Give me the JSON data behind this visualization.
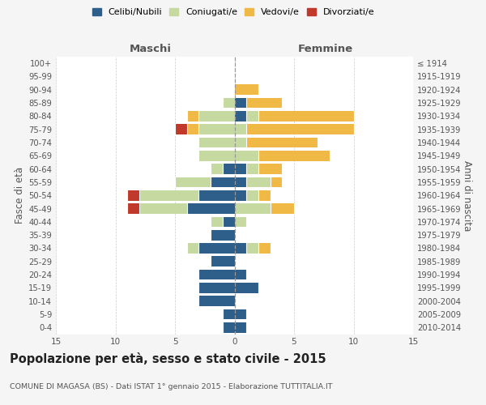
{
  "age_groups": [
    "0-4",
    "5-9",
    "10-14",
    "15-19",
    "20-24",
    "25-29",
    "30-34",
    "35-39",
    "40-44",
    "45-49",
    "50-54",
    "55-59",
    "60-64",
    "65-69",
    "70-74",
    "75-79",
    "80-84",
    "85-89",
    "90-94",
    "95-99",
    "100+"
  ],
  "birth_years": [
    "2010-2014",
    "2005-2009",
    "2000-2004",
    "1995-1999",
    "1990-1994",
    "1985-1989",
    "1980-1984",
    "1975-1979",
    "1970-1974",
    "1965-1969",
    "1960-1964",
    "1955-1959",
    "1950-1954",
    "1945-1949",
    "1940-1944",
    "1935-1939",
    "1930-1934",
    "1925-1929",
    "1920-1924",
    "1915-1919",
    "≤ 1914"
  ],
  "male": {
    "celibi": [
      1,
      1,
      3,
      3,
      3,
      2,
      3,
      2,
      1,
      4,
      3,
      2,
      1,
      0,
      0,
      0,
      0,
      0,
      0,
      0,
      0
    ],
    "coniugati": [
      0,
      0,
      0,
      0,
      0,
      0,
      1,
      0,
      1,
      4,
      5,
      3,
      1,
      3,
      3,
      3,
      3,
      1,
      0,
      0,
      0
    ],
    "vedovi": [
      0,
      0,
      0,
      0,
      0,
      0,
      0,
      0,
      0,
      0,
      0,
      0,
      0,
      0,
      0,
      1,
      1,
      0,
      0,
      0,
      0
    ],
    "divorziati": [
      0,
      0,
      0,
      0,
      0,
      0,
      0,
      0,
      0,
      1,
      1,
      0,
      0,
      0,
      0,
      1,
      0,
      0,
      0,
      0,
      0
    ]
  },
  "female": {
    "celibi": [
      1,
      1,
      0,
      2,
      1,
      0,
      1,
      0,
      0,
      0,
      1,
      1,
      1,
      0,
      0,
      0,
      1,
      1,
      0,
      0,
      0
    ],
    "coniugati": [
      0,
      0,
      0,
      0,
      0,
      0,
      1,
      0,
      1,
      3,
      1,
      2,
      1,
      2,
      1,
      1,
      1,
      0,
      0,
      0,
      0
    ],
    "vedovi": [
      0,
      0,
      0,
      0,
      0,
      0,
      1,
      0,
      0,
      2,
      1,
      1,
      2,
      6,
      6,
      9,
      8,
      3,
      2,
      0,
      0
    ],
    "divorziati": [
      0,
      0,
      0,
      0,
      0,
      0,
      0,
      0,
      0,
      0,
      0,
      0,
      0,
      0,
      0,
      0,
      0,
      0,
      0,
      0,
      0
    ]
  },
  "colors": {
    "celibi": "#2e5f8a",
    "coniugati": "#c5d9a0",
    "vedovi": "#f0b945",
    "divorziati": "#c0392b"
  },
  "legend_labels": [
    "Celibi/Nubili",
    "Coniugati/e",
    "Vedovi/e",
    "Divorziati/e"
  ],
  "xlim": 15,
  "title": "Popolazione per età, sesso e stato civile - 2015",
  "subtitle": "COMUNE DI MAGASA (BS) - Dati ISTAT 1° gennaio 2015 - Elaborazione TUTTITALIA.IT",
  "xlabel_left": "Maschi",
  "xlabel_right": "Femmine",
  "ylabel_left": "Fasce di età",
  "ylabel_right": "Anni di nascita",
  "bg_color": "#f5f5f5",
  "plot_bg_color": "#ffffff"
}
